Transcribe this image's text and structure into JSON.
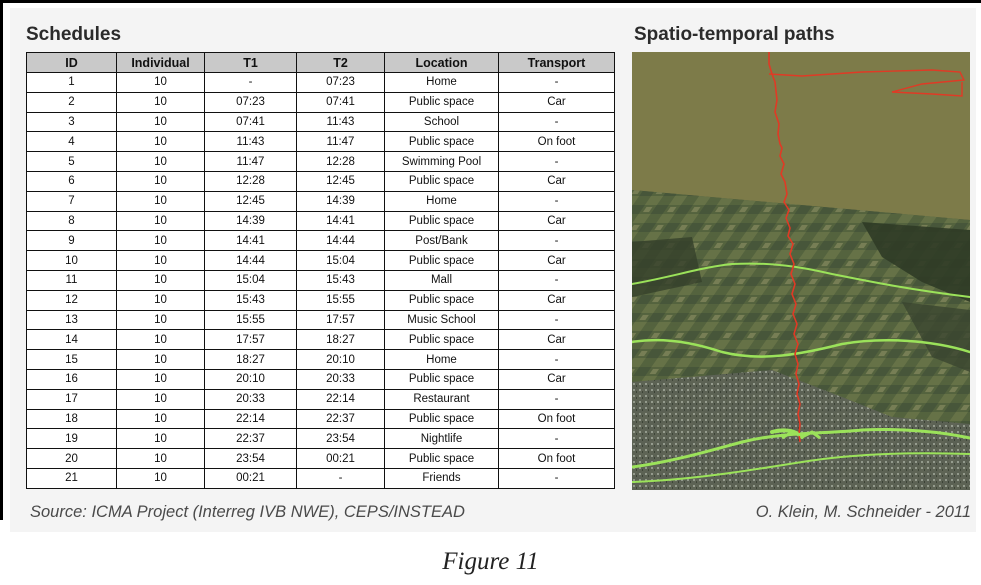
{
  "schedules": {
    "title": "Schedules",
    "columns": [
      "ID",
      "Individual",
      "T1",
      "T2",
      "Location",
      "Transport"
    ],
    "rows": [
      [
        "1",
        "10",
        "-",
        "07:23",
        "Home",
        "-"
      ],
      [
        "2",
        "10",
        "07:23",
        "07:41",
        "Public space",
        "Car"
      ],
      [
        "3",
        "10",
        "07:41",
        "11:43",
        "School",
        "-"
      ],
      [
        "4",
        "10",
        "11:43",
        "11:47",
        "Public space",
        "On foot"
      ],
      [
        "5",
        "10",
        "11:47",
        "12:28",
        "Swimming Pool",
        "-"
      ],
      [
        "6",
        "10",
        "12:28",
        "12:45",
        "Public space",
        "Car"
      ],
      [
        "7",
        "10",
        "12:45",
        "14:39",
        "Home",
        "-"
      ],
      [
        "8",
        "10",
        "14:39",
        "14:41",
        "Public space",
        "Car"
      ],
      [
        "9",
        "10",
        "14:41",
        "14:44",
        "Post/Bank",
        "-"
      ],
      [
        "10",
        "10",
        "14:44",
        "15:04",
        "Public space",
        "Car"
      ],
      [
        "11",
        "10",
        "15:04",
        "15:43",
        "Mall",
        "-"
      ],
      [
        "12",
        "10",
        "15:43",
        "15:55",
        "Public space",
        "Car"
      ],
      [
        "13",
        "10",
        "15:55",
        "17:57",
        "Music School",
        "-"
      ],
      [
        "14",
        "10",
        "17:57",
        "18:27",
        "Public space",
        "Car"
      ],
      [
        "15",
        "10",
        "18:27",
        "20:10",
        "Home",
        "-"
      ],
      [
        "16",
        "10",
        "20:10",
        "20:33",
        "Public space",
        "Car"
      ],
      [
        "17",
        "10",
        "20:33",
        "22:14",
        "Restaurant",
        "-"
      ],
      [
        "18",
        "10",
        "22:14",
        "22:37",
        "Public space",
        "On foot"
      ],
      [
        "19",
        "10",
        "22:37",
        "23:54",
        "Nightlife",
        "-"
      ],
      [
        "20",
        "10",
        "23:54",
        "00:21",
        "Public space",
        "On foot"
      ],
      [
        "21",
        "10",
        "00:21",
        "-",
        "Friends",
        "-"
      ]
    ]
  },
  "paths": {
    "title": "Spatio-temporal paths",
    "colors": {
      "plane": "#7d7b49",
      "terrain": "#4c5a3a",
      "path": "#e03a25",
      "boundary": "#9be25a"
    }
  },
  "source": "Source: ICMA Project (Interreg IVB NWE), CEPS/INSTEAD",
  "credit": "O. Klein, M. Schneider - 2011",
  "caption": "Figure 11"
}
